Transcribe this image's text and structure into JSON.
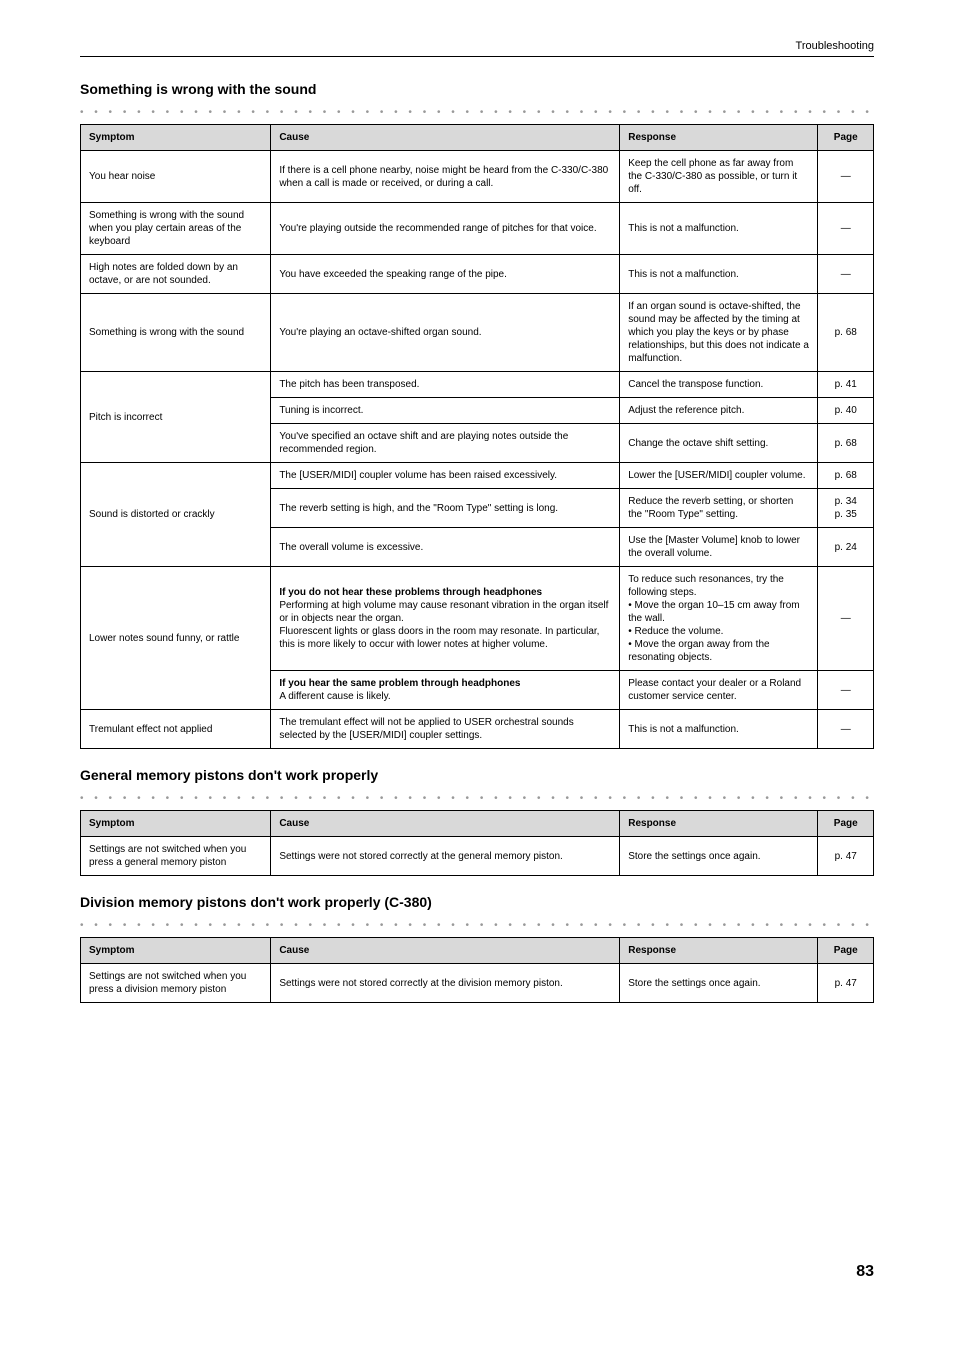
{
  "header": {
    "title": "Troubleshooting"
  },
  "sections": [
    {
      "title": "Something is wrong with the sound",
      "columns": [
        "Symptom",
        "Cause",
        "Response",
        "Page"
      ],
      "rows": [
        {
          "symptom": "You hear noise",
          "cause": "If there is a cell phone nearby, noise might be heard from the C-330/C-380 when a call is made or received, or during a call.",
          "response": "Keep the cell phone as far away from the C-330/C-380 as possible, or turn it off.",
          "page": "—",
          "symptom_rows": 1
        },
        {
          "symptom": "Something is wrong with the sound when you play certain areas of the keyboard",
          "cause": "You're playing outside the recommended range of pitches for that voice.",
          "response": "This is not a malfunction.",
          "page": "—",
          "symptom_rows": 1
        },
        {
          "symptom": "High notes are folded down by an octave, or are not sounded.",
          "cause": "You have exceeded the speaking range of the pipe.",
          "response": "This is not a malfunction.",
          "page": "—",
          "symptom_rows": 1
        },
        {
          "symptom": "Something is wrong with the sound",
          "cause": "You're playing an octave-shifted organ sound.",
          "response": "If an organ sound is octave-shifted, the sound may be affected by the timing at which you play the keys or by phase relationships, but this does not indicate a malfunction.",
          "page": "p. 68",
          "symptom_rows": 1
        },
        {
          "symptom": "Pitch is incorrect",
          "cause": "The pitch has been transposed.",
          "response": "Cancel the transpose function.",
          "page": "p. 41",
          "symptom_rows": 3
        },
        {
          "cause": "Tuning is incorrect.",
          "response": "Adjust the reference pitch.",
          "page": "p. 40"
        },
        {
          "cause": "You've specified an octave shift and are playing notes outside the recommended region.",
          "response": "Change the octave shift setting.",
          "page": "p. 68"
        },
        {
          "symptom": "Sound is distorted or crackly",
          "cause": "The [USER/MIDI] coupler volume has been raised excessively.",
          "response": "Lower the [USER/MIDI] coupler volume.",
          "page": "p. 68",
          "symptom_rows": 3
        },
        {
          "cause": "The reverb setting is high, and the \"Room Type\" setting is long.",
          "response": "Reduce the reverb setting, or shorten the \"Room Type\" setting.",
          "page": "p. 34\np. 35"
        },
        {
          "cause": "The overall volume is excessive.",
          "response": "Use the [Master Volume] knob to lower the overall volume.",
          "page": "p. 24"
        },
        {
          "symptom": "Lower notes sound funny, or rattle",
          "cause_bold": "If you do not hear these problems through headphones",
          "cause": "Performing at high volume may cause resonant vibration in the organ itself or in objects near the organ.\nFluorescent lights or glass doors in the room may resonate. In particular, this is more likely to occur with lower notes at higher volume.",
          "response": "To reduce such resonances, try the following steps.\n• Move the organ 10–15 cm away from the wall.\n• Reduce the volume.\n• Move the organ away from the resonating objects.",
          "page": "—",
          "symptom_rows": 2
        },
        {
          "cause_bold": "If you hear the same problem through headphones",
          "cause": "A different cause is likely.",
          "response": "Please contact your dealer or a Roland customer service center.",
          "page": "—"
        },
        {
          "symptom": "Tremulant effect not applied",
          "cause": "The tremulant effect will not be applied to USER orchestral sounds selected by the [USER/MIDI] coupler settings.",
          "response": "This is not a malfunction.",
          "page": "—",
          "symptom_rows": 1
        }
      ]
    },
    {
      "title": "General memory pistons don't work properly",
      "columns": [
        "Symptom",
        "Cause",
        "Response",
        "Page"
      ],
      "rows": [
        {
          "symptom": "Settings are not switched when you press a general memory piston",
          "cause": "Settings were not stored correctly at the general memory piston.",
          "response": "Store the settings once again.",
          "page": "p. 47",
          "symptom_rows": 1
        }
      ]
    },
    {
      "title": "Division memory pistons don't work properly (C-380)",
      "columns": [
        "Symptom",
        "Cause",
        "Response",
        "Page"
      ],
      "rows": [
        {
          "symptom": "Settings are not switched when you press a division memory piston",
          "cause": "Settings were not stored correctly at the division memory piston.",
          "response": "Store the settings once again.",
          "page": "p. 47",
          "symptom_rows": 1
        }
      ]
    }
  ],
  "footer": {
    "page_number": "83"
  },
  "dots": "• • • • • • • • • • • • • • • • • • • • • • • • • • • • • • • • • • • • • • • • • • • • • • • • • • • • • • • • • • • • • • • • • • • • • • •"
}
